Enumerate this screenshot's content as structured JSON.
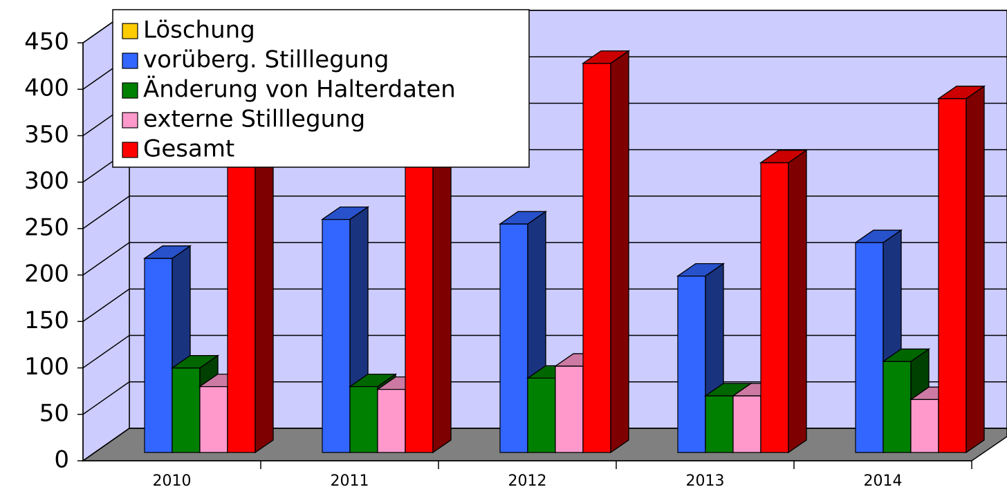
{
  "chart_data": {
    "type": "bar3d",
    "categories": [
      "2010",
      "2011",
      "2012",
      "2013",
      "2014"
    ],
    "series": [
      {
        "name": "Löschung",
        "color": "#ffcc00",
        "values": [
          0,
          0,
          0,
          0,
          0
        ]
      },
      {
        "name": "vorüberg. Stilllegung",
        "color": "#3366ff",
        "values": [
          209,
          251,
          246,
          190,
          226
        ]
      },
      {
        "name": "Änderung von Halterdaten",
        "color": "#008000",
        "values": [
          91,
          71,
          80,
          61,
          98
        ]
      },
      {
        "name": "externe Stilllegung",
        "color": "#ff99cc",
        "values": [
          71,
          68,
          93,
          61,
          57
        ]
      },
      {
        "name": "Gesamt",
        "color": "#ff0000",
        "values": [
          371,
          390,
          419,
          312,
          381
        ]
      }
    ],
    "ylim": [
      0,
      450
    ],
    "yticks": [
      0,
      50,
      100,
      150,
      200,
      250,
      300,
      350,
      400,
      450
    ],
    "grid": true,
    "legend": "top-left"
  }
}
